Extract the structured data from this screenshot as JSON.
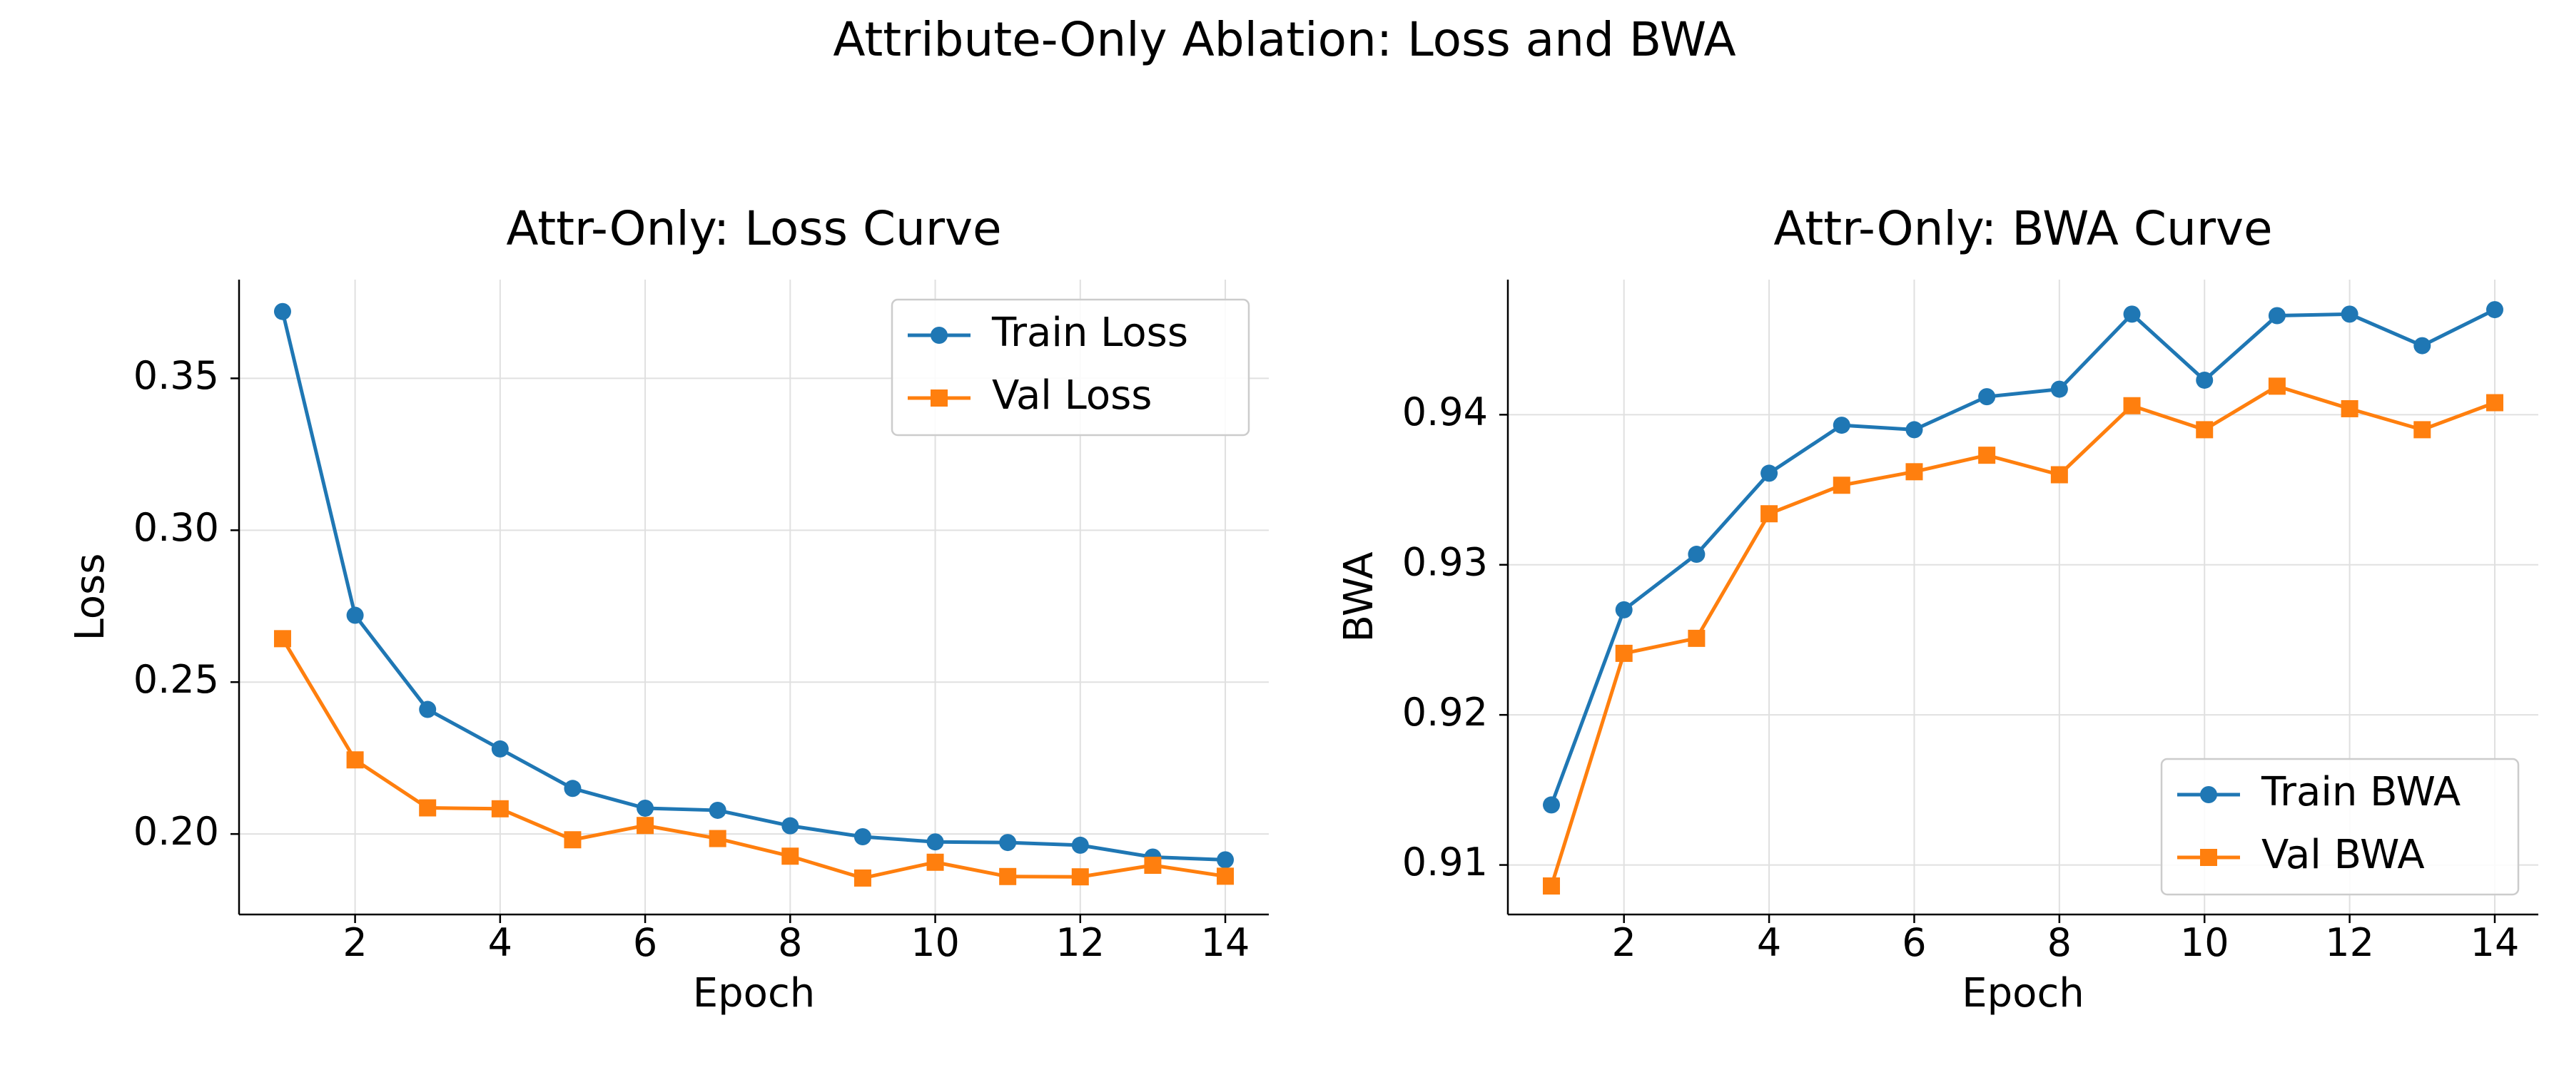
{
  "figure": {
    "title": "Attribute-Only Ablation: Loss and BWA"
  },
  "chart_data": [
    {
      "type": "line",
      "title": "Attr-Only: Loss Curve",
      "xlabel": "Epoch",
      "ylabel": "Loss",
      "x": [
        1,
        2,
        3,
        4,
        5,
        6,
        7,
        8,
        9,
        10,
        11,
        12,
        13,
        14
      ],
      "xlim": [
        0.4,
        14.6
      ],
      "ylim": [
        0.1735,
        0.3825
      ],
      "xticks": [
        2,
        4,
        6,
        8,
        10,
        12,
        14
      ],
      "yticks": [
        0.2,
        0.25,
        0.3,
        0.35
      ],
      "ytick_labels": [
        "0.20",
        "0.25",
        "0.30",
        "0.35"
      ],
      "grid": true,
      "legend_position": "top-right",
      "series": [
        {
          "name": "Train Loss",
          "color": "#1f77b4",
          "marker": "circle",
          "values": [
            0.372,
            0.272,
            0.241,
            0.228,
            0.215,
            0.2085,
            0.2078,
            0.2027,
            0.1991,
            0.1974,
            0.1972,
            0.1963,
            0.1924,
            0.1915
          ]
        },
        {
          "name": "Val Loss",
          "color": "#ff7f0e",
          "marker": "square",
          "values": [
            0.2643,
            0.2244,
            0.2086,
            0.2083,
            0.1981,
            0.2028,
            0.1985,
            0.1927,
            0.1855,
            0.1907,
            0.186,
            0.1859,
            0.1897,
            0.1861
          ]
        }
      ]
    },
    {
      "type": "line",
      "title": "Attr-Only: BWA Curve",
      "xlabel": "Epoch",
      "ylabel": "BWA",
      "x": [
        1,
        2,
        3,
        4,
        5,
        6,
        7,
        8,
        9,
        10,
        11,
        12,
        13,
        14
      ],
      "xlim": [
        0.4,
        14.6
      ],
      "ylim": [
        0.9067,
        0.949
      ],
      "xticks": [
        2,
        4,
        6,
        8,
        10,
        12,
        14
      ],
      "yticks": [
        0.91,
        0.92,
        0.93,
        0.94
      ],
      "ytick_labels": [
        "0.91",
        "0.92",
        "0.93",
        "0.94"
      ],
      "grid": true,
      "legend_position": "bottom-right",
      "series": [
        {
          "name": "Train BWA",
          "color": "#1f77b4",
          "marker": "circle",
          "values": [
            0.914,
            0.927,
            0.9307,
            0.9361,
            0.9393,
            0.939,
            0.9412,
            0.9417,
            0.9467,
            0.9423,
            0.9466,
            0.9467,
            0.9446,
            0.947
          ]
        },
        {
          "name": "Val BWA",
          "color": "#ff7f0e",
          "marker": "square",
          "values": [
            0.9086,
            0.9241,
            0.9251,
            0.9334,
            0.9353,
            0.9362,
            0.9373,
            0.936,
            0.9406,
            0.939,
            0.9419,
            0.9404,
            0.939,
            0.9408
          ]
        }
      ]
    }
  ]
}
